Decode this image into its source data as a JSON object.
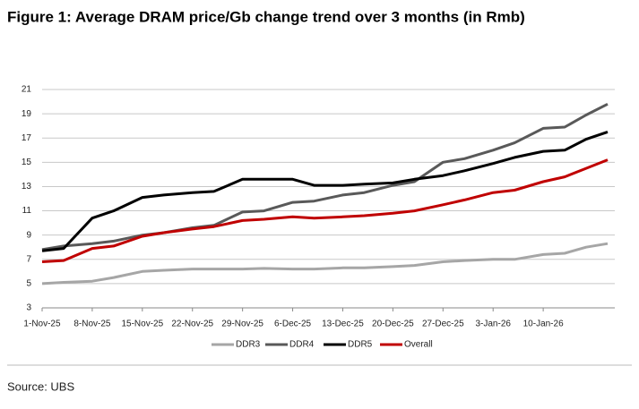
{
  "chart_data": {
    "type": "line",
    "title": "Figure 1: Average DRAM price/Gb change trend over 3 months (in Rmb)",
    "source": "Source: UBS",
    "x": [
      "1-Nov-25",
      "4-Nov-25",
      "8-Nov-25",
      "11-Nov-25",
      "15-Nov-25",
      "18-Nov-25",
      "22-Nov-25",
      "25-Nov-25",
      "29-Nov-25",
      "2-Dec-25",
      "6-Dec-25",
      "9-Dec-25",
      "13-Dec-25",
      "16-Dec-25",
      "20-Dec-25",
      "23-Dec-25",
      "27-Dec-25",
      "30-Dec-25",
      "3-Jan-26",
      "6-Jan-26",
      "10-Jan-26",
      "13-Jan-26",
      "16-Jan-26",
      "19-Jan-26"
    ],
    "xlim": [
      "1-Nov-25",
      "20-Jan-26"
    ],
    "xticks": [
      "1-Nov-25",
      "8-Nov-25",
      "15-Nov-25",
      "22-Nov-25",
      "29-Nov-25",
      "6-Dec-25",
      "13-Dec-25",
      "20-Dec-25",
      "27-Dec-25",
      "3-Jan-26",
      "10-Jan-26"
    ],
    "ylim": [
      3,
      21
    ],
    "yticks": [
      3,
      5,
      7,
      9,
      11,
      13,
      15,
      17,
      19,
      21
    ],
    "grid": true,
    "legend": "bottom",
    "series": [
      {
        "name": "DDR3",
        "color": "#a6a6a6",
        "values": [
          5.0,
          5.1,
          5.2,
          5.5,
          6.0,
          6.1,
          6.2,
          6.2,
          6.2,
          6.25,
          6.2,
          6.2,
          6.3,
          6.3,
          6.4,
          6.5,
          6.8,
          6.9,
          7.0,
          7.0,
          7.4,
          7.5,
          8.0,
          8.3
        ]
      },
      {
        "name": "DDR4",
        "color": "#595959",
        "values": [
          7.8,
          8.1,
          8.3,
          8.5,
          9.0,
          9.2,
          9.6,
          9.8,
          10.9,
          11.0,
          11.7,
          11.8,
          12.3,
          12.5,
          13.1,
          13.4,
          15.0,
          15.3,
          16.0,
          16.6,
          17.8,
          17.9,
          18.9,
          19.8
        ]
      },
      {
        "name": "DDR5",
        "color": "#000000",
        "values": [
          7.7,
          7.9,
          10.4,
          11.0,
          12.1,
          12.3,
          12.5,
          12.6,
          13.6,
          13.6,
          13.6,
          13.1,
          13.1,
          13.2,
          13.3,
          13.6,
          13.9,
          14.3,
          14.9,
          15.4,
          15.9,
          16.0,
          16.9,
          17.5
        ]
      },
      {
        "name": "Overall",
        "color": "#c00000",
        "values": [
          6.8,
          6.9,
          7.9,
          8.1,
          8.9,
          9.2,
          9.5,
          9.7,
          10.2,
          10.3,
          10.5,
          10.4,
          10.5,
          10.6,
          10.8,
          11.0,
          11.5,
          11.9,
          12.5,
          12.7,
          13.4,
          13.8,
          14.5,
          15.2
        ]
      }
    ]
  }
}
